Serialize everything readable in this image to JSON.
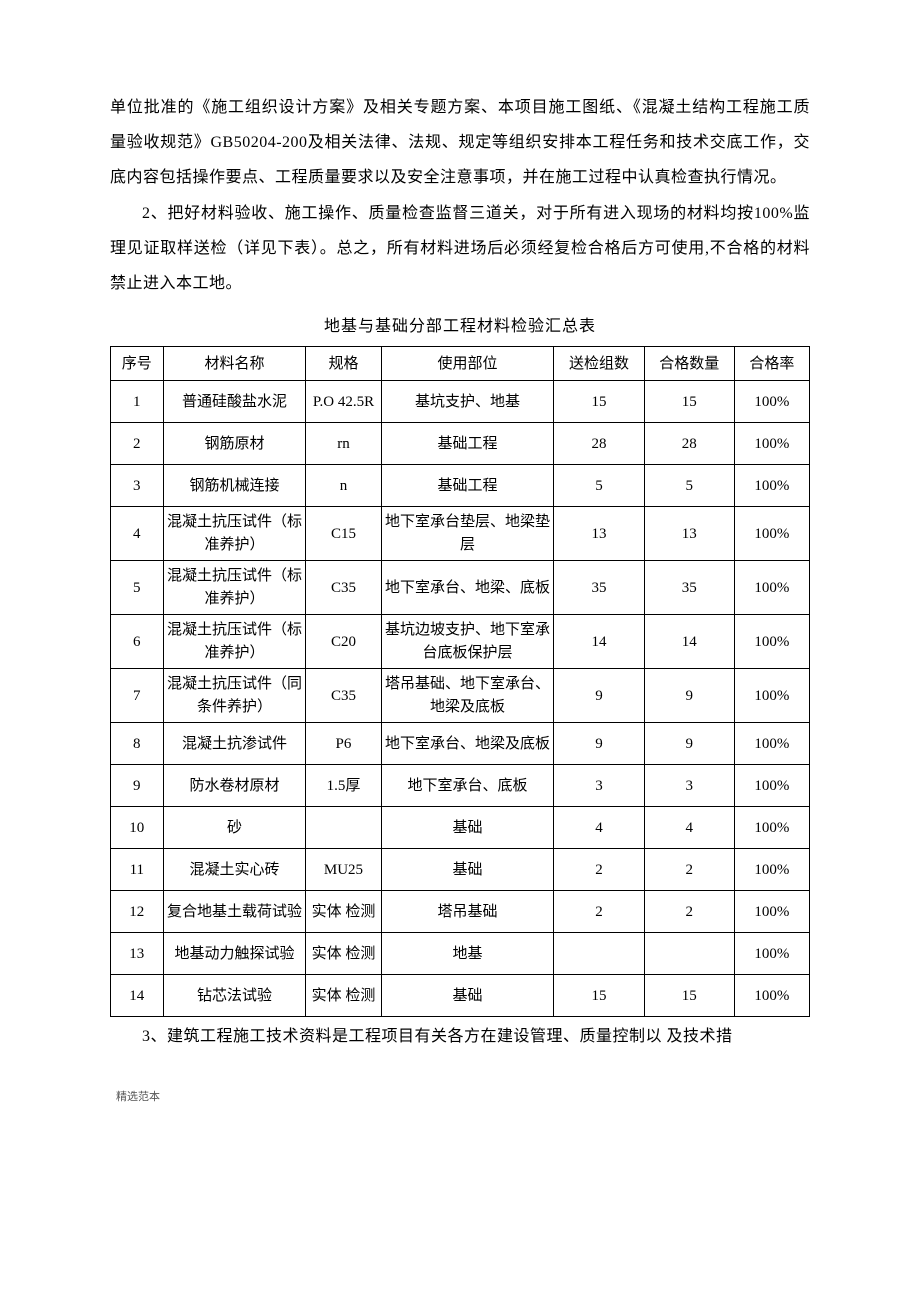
{
  "paragraphs": {
    "p1": "单位批准的《施工组织设计方案》及相关专题方案、本项目施工图纸、《混凝土结构工程施工质量验收规范》GB50204-200及相关法律、法规、规定等组织安排本工程任务和技术交底工作，交底内容包括操作要点、工程质量要求以及安全注意事项，并在施工过程中认真检查执行情况。",
    "p2": "2、把好材料验收、施工操作、质量检查监督三道关，对于所有进入现场的材料均按100%监理见证取样送检（详见下表）。总之，所有材料进场后必须经复检合格后方可使用,不合格的材料禁止进入本工地。",
    "p3": "3、建筑工程施工技术资料是工程项目有关各方在建设管理、质量控制以 及技术措"
  },
  "table": {
    "title": "地基与基础分部工程材料检验汇总表",
    "columns": [
      "序号",
      "材料名称",
      "规格",
      "使用部位",
      "送检组数",
      "合格数量",
      "合格率"
    ],
    "rows": [
      {
        "seq": "1",
        "name": "普通硅酸盐水泥",
        "spec": "P.O 42.5R",
        "loc": "基坑支护、地基",
        "sent": "15",
        "pass": "15",
        "rate": "100%"
      },
      {
        "seq": "2",
        "name": "钢筋原材",
        "spec": "rn",
        "loc": "基础工程",
        "sent": "28",
        "pass": "28",
        "rate": "100%"
      },
      {
        "seq": "3",
        "name": "钢筋机械连接",
        "spec": "n",
        "loc": "基础工程",
        "sent": "5",
        "pass": "5",
        "rate": "100%"
      },
      {
        "seq": "4",
        "name": "混凝土抗压试件（标准养护）",
        "spec": "C15",
        "loc": "地下室承台垫层、地梁垫层",
        "sent": "13",
        "pass": "13",
        "rate": "100%"
      },
      {
        "seq": "5",
        "name": "混凝土抗压试件（标准养护）",
        "spec": "C35",
        "loc": "地下室承台、地梁、底板",
        "sent": "35",
        "pass": "35",
        "rate": "100%"
      },
      {
        "seq": "6",
        "name": "混凝土抗压试件（标准养护）",
        "spec": "C20",
        "loc": "基坑边坡支护、地下室承台底板保护层",
        "sent": "14",
        "pass": "14",
        "rate": "100%"
      },
      {
        "seq": "7",
        "name": "混凝土抗压试件（同条件养护）",
        "spec": "C35",
        "loc": "塔吊基础、地下室承台、地梁及底板",
        "sent": "9",
        "pass": "9",
        "rate": "100%"
      },
      {
        "seq": "8",
        "name": "混凝土抗渗试件",
        "spec": "P6",
        "loc": "地下室承台、地梁及底板",
        "sent": "9",
        "pass": "9",
        "rate": "100%"
      },
      {
        "seq": "9",
        "name": "防水卷材原材",
        "spec": "1.5厚",
        "loc": "地下室承台、底板",
        "sent": "3",
        "pass": "3",
        "rate": "100%"
      },
      {
        "seq": "10",
        "name": "砂",
        "spec": "",
        "loc": "基础",
        "sent": "4",
        "pass": "4",
        "rate": "100%"
      },
      {
        "seq": "11",
        "name": "混凝土实心砖",
        "spec": "MU25",
        "loc": "基础",
        "sent": "2",
        "pass": "2",
        "rate": "100%"
      },
      {
        "seq": "12",
        "name": "复合地基土载荷试验",
        "spec": "实体 检测",
        "loc": "塔吊基础",
        "sent": "2",
        "pass": "2",
        "rate": "100%"
      },
      {
        "seq": "13",
        "name": "地基动力触探试验",
        "spec": "实体 检测",
        "loc": "地基",
        "sent": "",
        "pass": "",
        "rate": "100%"
      },
      {
        "seq": "14",
        "name": "钻芯法试验",
        "spec": "实体 检测",
        "loc": "基础",
        "sent": "15",
        "pass": "15",
        "rate": "100%"
      }
    ]
  },
  "footnote": "精选范本",
  "styling": {
    "body_font": "SimSun",
    "body_fontsize": 16,
    "text_color": "#000000",
    "background_color": "#ffffff",
    "border_color": "#000000",
    "table_fontsize": 15,
    "line_height": 2.2
  }
}
